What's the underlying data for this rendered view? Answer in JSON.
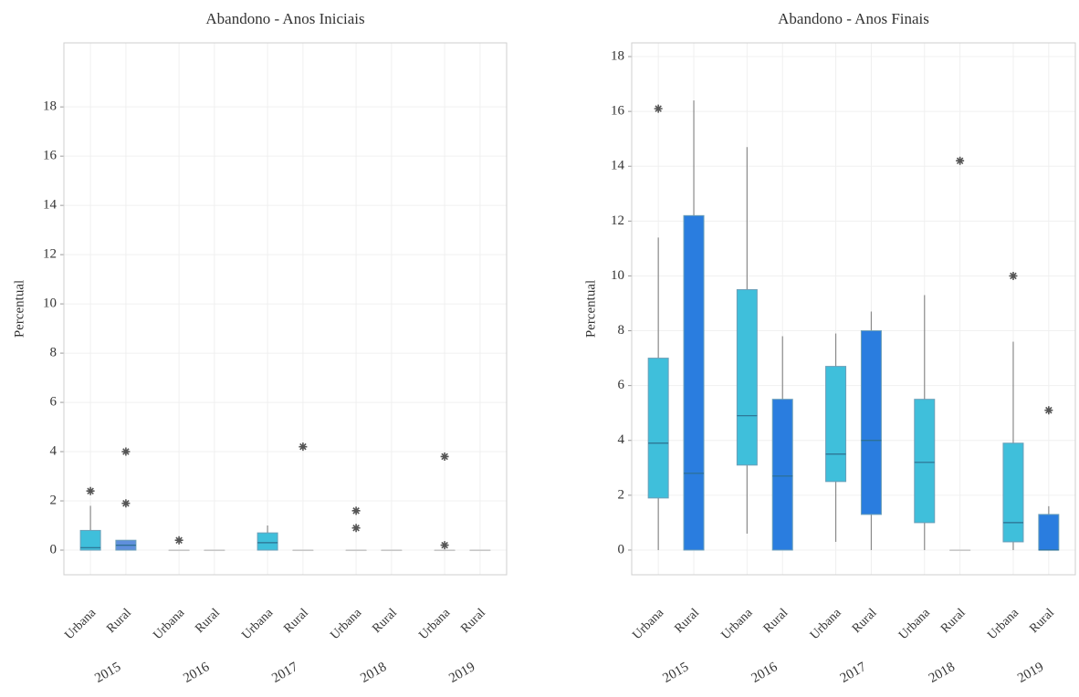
{
  "chart_data": [
    {
      "type": "box",
      "title": "Abandono - Anos Iniciais",
      "y_label": "Percentual",
      "groups": [
        "2015",
        "2016",
        "2017",
        "2018",
        "2019"
      ],
      "ylim": [
        -1,
        20.6
      ],
      "yticks": [
        0,
        2,
        4,
        6,
        8,
        10,
        12,
        14,
        16,
        18
      ],
      "grid": true,
      "series": [
        {
          "name": "Urbana",
          "color": "#3fbfdb",
          "boxes": [
            {
              "min": 0,
              "q1": 0,
              "median": 0.1,
              "q3": 0.8,
              "max": 1.8,
              "outliers": [
                2.4
              ]
            },
            {
              "min": 0,
              "q1": 0,
              "median": 0,
              "q3": 0,
              "max": 0,
              "outliers": [
                0.4
              ]
            },
            {
              "min": 0,
              "q1": 0,
              "median": 0.3,
              "q3": 0.7,
              "max": 1.0,
              "outliers": []
            },
            {
              "min": 0,
              "q1": 0,
              "median": 0,
              "q3": 0,
              "max": 0,
              "outliers": [
                1.6,
                0.9
              ]
            },
            {
              "min": 0,
              "q1": 0,
              "median": 0,
              "q3": 0,
              "max": 0,
              "outliers": [
                3.8,
                0.2
              ]
            }
          ]
        },
        {
          "name": "Rural",
          "color": "#5f8fdc",
          "boxes": [
            {
              "min": 0,
              "q1": 0,
              "median": 0.2,
              "q3": 0.4,
              "max": 0.4,
              "outliers": [
                1.9,
                4.0
              ]
            },
            {
              "min": 0,
              "q1": 0,
              "median": 0,
              "q3": 0,
              "max": 0,
              "outliers": []
            },
            {
              "min": 0,
              "q1": 0,
              "median": 0,
              "q3": 0,
              "max": 0,
              "outliers": [
                4.2
              ]
            },
            {
              "min": 0,
              "q1": 0,
              "median": 0,
              "q3": 0,
              "max": 0,
              "outliers": []
            },
            {
              "min": 0,
              "q1": 0,
              "median": 0,
              "q3": 0,
              "max": 0,
              "outliers": []
            }
          ]
        }
      ]
    },
    {
      "type": "box",
      "title": "Abandono - Anos Finais",
      "y_label": "Percentual",
      "groups": [
        "2015",
        "2016",
        "2017",
        "2018",
        "2019"
      ],
      "ylim": [
        -0.9,
        18.5
      ],
      "yticks": [
        0,
        2,
        4,
        6,
        8,
        10,
        12,
        14,
        16,
        18
      ],
      "grid": true,
      "series": [
        {
          "name": "Urbana",
          "color": "#3fbfdb",
          "boxes": [
            {
              "min": 0,
              "q1": 1.9,
              "median": 3.9,
              "q3": 7.0,
              "max": 11.4,
              "outliers": [
                16.1
              ]
            },
            {
              "min": 0.6,
              "q1": 3.1,
              "median": 4.9,
              "q3": 9.5,
              "max": 14.7,
              "outliers": []
            },
            {
              "min": 0.3,
              "q1": 2.5,
              "median": 3.5,
              "q3": 6.7,
              "max": 7.9,
              "outliers": []
            },
            {
              "min": 0,
              "q1": 1.0,
              "median": 3.2,
              "q3": 5.5,
              "max": 9.3,
              "outliers": []
            },
            {
              "min": 0,
              "q1": 0.3,
              "median": 1.0,
              "q3": 3.9,
              "max": 7.6,
              "outliers": [
                10.0
              ]
            }
          ]
        },
        {
          "name": "Rural",
          "color": "#2a7ddf",
          "boxes": [
            {
              "min": 0,
              "q1": 0,
              "median": 2.8,
              "q3": 12.2,
              "max": 16.4,
              "outliers": []
            },
            {
              "min": 0,
              "q1": 0,
              "median": 2.7,
              "q3": 5.5,
              "max": 7.8,
              "outliers": []
            },
            {
              "min": 0,
              "q1": 1.3,
              "median": 4.0,
              "q3": 8.0,
              "max": 8.7,
              "outliers": []
            },
            {
              "min": 0,
              "q1": 0,
              "median": 0,
              "q3": 0,
              "max": 0,
              "outliers": [
                14.2
              ]
            },
            {
              "min": 0,
              "q1": 0,
              "median": 0,
              "q3": 1.3,
              "max": 1.6,
              "outliers": [
                5.1
              ]
            }
          ]
        }
      ]
    }
  ]
}
